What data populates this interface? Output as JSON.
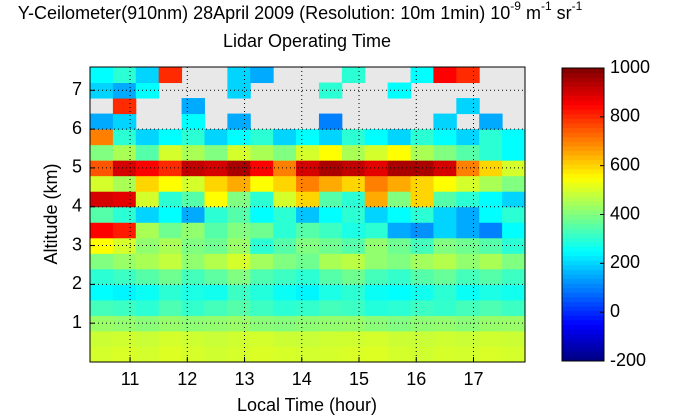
{
  "chart_data": {
    "type": "heatmap",
    "title_parts": [
      {
        "text": "Y-Ceilometer(910nm) 28April 2009 (Resolution: 10m 1min) 10",
        "sup": false
      },
      {
        "text": "-9",
        "sup": true
      },
      {
        "text": " m",
        "sup": false
      },
      {
        "text": "-1",
        "sup": true
      },
      {
        "text": " sr",
        "sup": false
      },
      {
        "text": "-1",
        "sup": true
      }
    ],
    "subtitle": "Lidar Operating Time",
    "xlabel": "Local Time (hour)",
    "ylabel": "Altitude (km)",
    "xlim": [
      10.3,
      17.9
    ],
    "xticks": [
      11,
      12,
      13,
      14,
      15,
      16,
      17
    ],
    "ylim": [
      0,
      7.6
    ],
    "yticks": [
      1,
      2,
      3,
      4,
      5,
      6,
      7
    ],
    "grid": true,
    "colormap": "jet",
    "missing_color": "#e8e8e8",
    "zlim": [
      -200,
      1000
    ],
    "zticks": [
      -200,
      0,
      200,
      400,
      600,
      800,
      1000
    ],
    "x": [
      10.5,
      10.9,
      11.3,
      11.7,
      12.1,
      12.5,
      12.9,
      13.3,
      13.7,
      14.1,
      14.5,
      14.9,
      15.3,
      15.7,
      16.1,
      16.5,
      16.9,
      17.3,
      17.7
    ],
    "y": [
      0.2,
      0.6,
      1.0,
      1.4,
      1.8,
      2.2,
      2.6,
      3.0,
      3.4,
      3.8,
      4.2,
      4.6,
      5.0,
      5.4,
      5.8,
      6.2,
      6.6,
      7.0,
      7.4
    ],
    "values": [
      [
        500,
        505,
        498,
        510,
        502,
        495,
        500,
        508,
        503,
        497,
        500,
        505,
        510,
        500,
        495,
        502,
        498,
        505,
        500
      ],
      [
        490,
        495,
        488,
        500,
        492,
        485,
        495,
        498,
        490,
        487,
        492,
        495,
        500,
        490,
        485,
        492,
        488,
        495,
        490
      ],
      [
        430,
        420,
        410,
        425,
        415,
        420,
        430,
        410,
        405,
        415,
        420,
        425,
        410,
        400,
        415,
        420,
        410,
        425,
        430
      ],
      [
        330,
        320,
        300,
        340,
        310,
        330,
        350,
        320,
        300,
        310,
        330,
        320,
        290,
        300,
        320,
        310,
        330,
        340,
        320
      ],
      [
        250,
        240,
        260,
        300,
        280,
        270,
        320,
        290,
        260,
        240,
        280,
        300,
        260,
        250,
        270,
        300,
        260,
        280,
        270
      ],
      [
        300,
        320,
        350,
        380,
        330,
        360,
        400,
        340,
        320,
        300,
        350,
        380,
        330,
        310,
        350,
        370,
        330,
        350,
        320
      ],
      [
        400,
        430,
        450,
        480,
        420,
        460,
        500,
        440,
        400,
        380,
        450,
        470,
        420,
        400,
        440,
        460,
        420,
        450,
        400
      ],
      [
        550,
        500,
        420,
        450,
        400,
        380,
        430,
        300,
        350,
        400,
        380,
        350,
        420,
        380,
        330,
        400,
        380,
        350,
        300
      ],
      [
        850,
        820,
        450,
        380,
        420,
        350,
        400,
        380,
        300,
        350,
        320,
        280,
        300,
        150,
        120,
        200,
        150,
        100,
        250
      ],
      [
        350,
        300,
        200,
        250,
        150,
        300,
        350,
        250,
        300,
        180,
        250,
        300,
        200,
        250,
        300,
        200,
        150,
        250,
        300
      ],
      [
        900,
        880,
        500,
        300,
        350,
        550,
        400,
        300,
        500,
        600,
        350,
        300,
        650,
        400,
        600,
        350,
        300,
        250,
        200
      ],
      [
        500,
        450,
        600,
        550,
        500,
        600,
        650,
        550,
        600,
        700,
        650,
        600,
        700,
        650,
        600,
        550,
        500,
        450,
        400
      ],
      [
        750,
        900,
        850,
        800,
        920,
        900,
        950,
        850,
        700,
        900,
        950,
        920,
        880,
        950,
        950,
        900,
        700,
        600,
        500
      ],
      [
        400,
        450,
        350,
        500,
        450,
        400,
        500,
        450,
        400,
        500,
        550,
        450,
        500,
        550,
        450,
        400,
        350,
        300,
        250
      ],
      [
        700,
        300,
        200,
        250,
        300,
        200,
        250,
        300,
        200,
        250,
        200,
        300,
        250,
        200,
        300,
        250,
        200,
        300,
        250
      ],
      [
        150,
        200,
        null,
        null,
        250,
        null,
        150,
        null,
        null,
        null,
        100,
        null,
        null,
        null,
        null,
        200,
        null,
        150,
        null
      ],
      [
        null,
        800,
        null,
        null,
        150,
        null,
        null,
        null,
        null,
        null,
        null,
        null,
        null,
        null,
        null,
        null,
        200,
        null,
        null
      ],
      [
        200,
        150,
        250,
        null,
        null,
        null,
        200,
        null,
        null,
        null,
        300,
        null,
        null,
        250,
        null,
        null,
        null,
        null,
        null
      ],
      [
        250,
        300,
        200,
        800,
        null,
        null,
        200,
        150,
        null,
        null,
        null,
        300,
        null,
        null,
        250,
        850,
        800,
        null,
        null
      ]
    ]
  }
}
